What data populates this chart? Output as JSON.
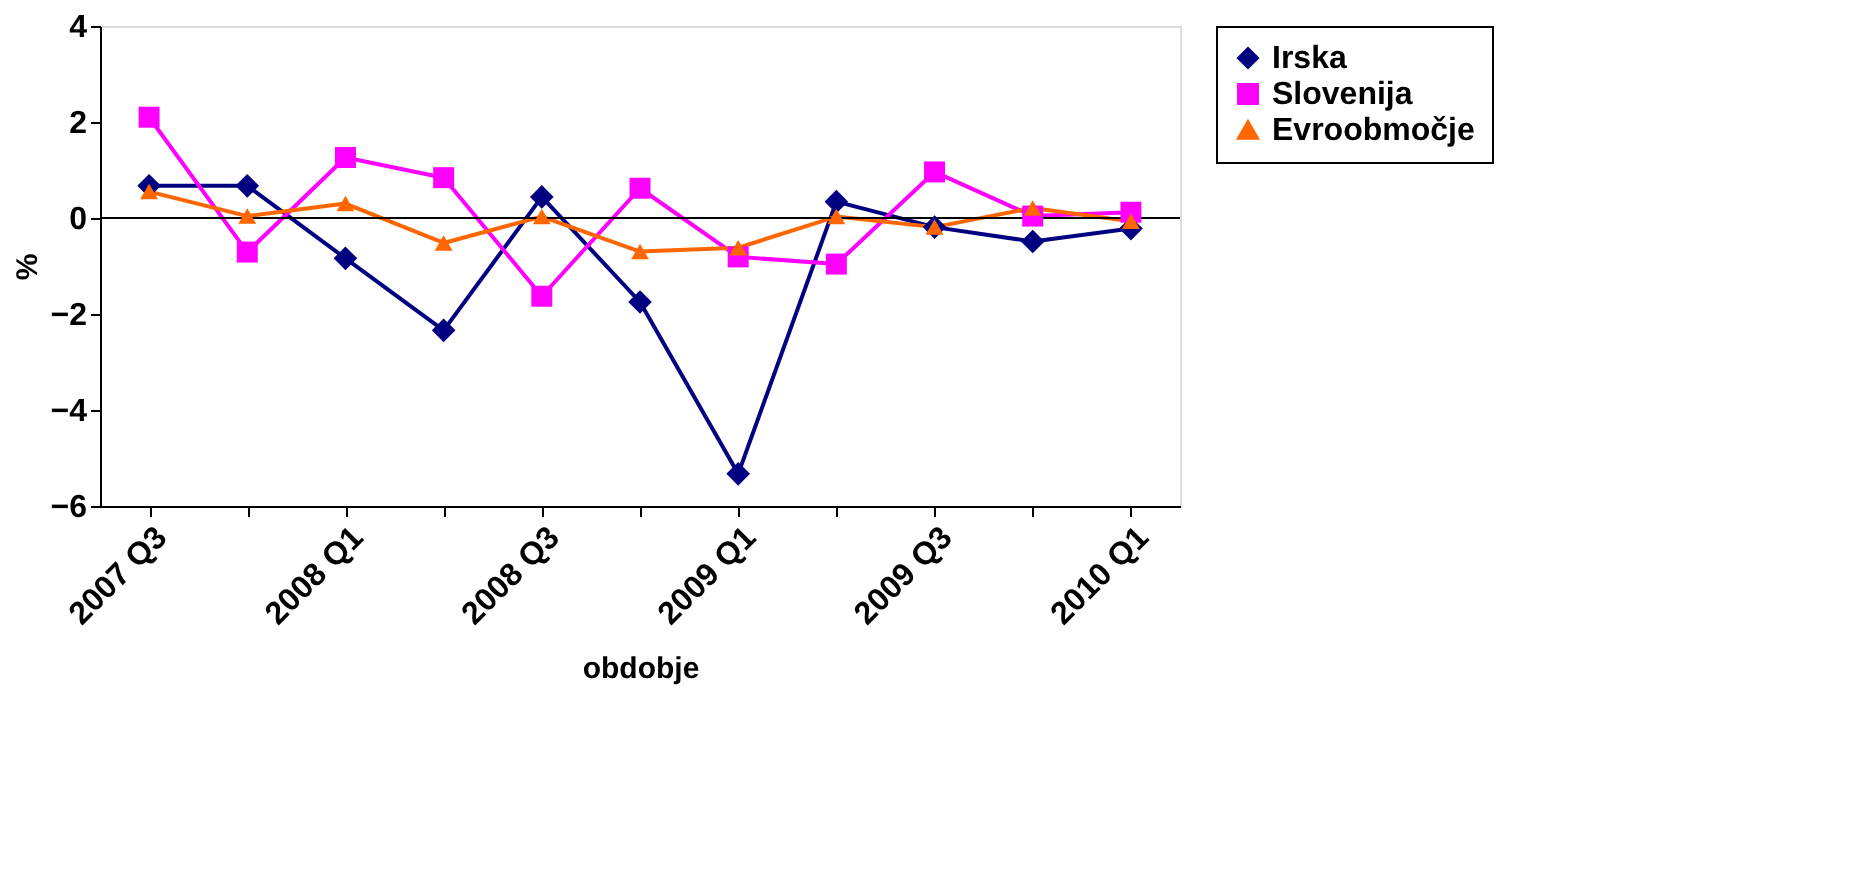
{
  "chart_data": {
    "type": "line",
    "xlabel": "obdobje",
    "ylabel": "%",
    "categories": [
      "2007 Q3",
      null,
      "2008 Q1",
      null,
      "2008 Q3",
      null,
      "2009 Q1",
      null,
      "2009 Q3",
      null,
      "2010 Q1"
    ],
    "series": [
      {
        "name": "Irska",
        "color": "#000080",
        "marker": "diamond",
        "values": [
          0.67,
          0.67,
          -0.84,
          -2.34,
          0.44,
          -1.75,
          -5.33,
          0.34,
          -0.19,
          -0.49,
          -0.22
        ]
      },
      {
        "name": "Slovenija",
        "color": "#ff00ff",
        "marker": "square",
        "values": [
          2.1,
          -0.71,
          1.26,
          0.84,
          -1.63,
          0.62,
          -0.81,
          -0.96,
          0.96,
          0.04,
          0.12
        ]
      },
      {
        "name": "Evroobmočje",
        "color": "#ff6600",
        "marker": "triangle",
        "values": [
          0.55,
          0.04,
          0.3,
          -0.52,
          0.03,
          -0.7,
          -0.62,
          0.03,
          -0.19,
          0.21,
          -0.07
        ]
      }
    ],
    "ylim": [
      -6,
      4
    ],
    "yticks": [
      -6,
      -4,
      -2,
      0,
      2,
      4
    ],
    "grid": false,
    "legend": "right",
    "ref_lines": [
      {
        "axis": "y",
        "value": 0,
        "color": "#000000"
      }
    ]
  }
}
